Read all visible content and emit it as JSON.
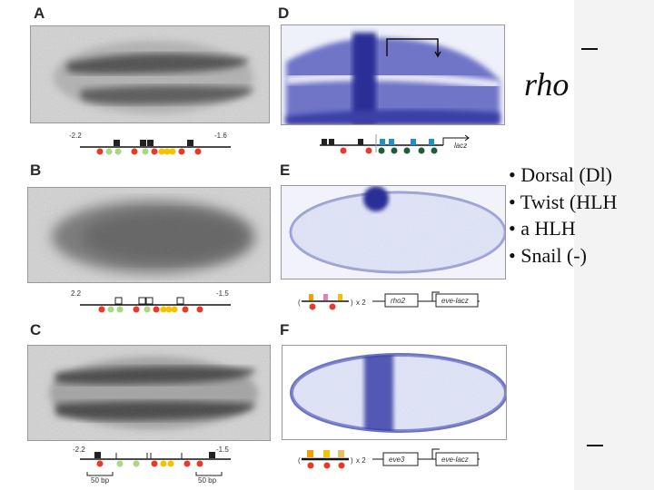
{
  "panels": {
    "A": {
      "label": "A",
      "coord_left": "-2.2",
      "coord_right": "-1.6"
    },
    "B": {
      "label": "B",
      "coord_left": "2.2",
      "coord_right": "-1.5"
    },
    "C": {
      "label": "C",
      "coord_left": "-2.2",
      "coord_right": "-1.5",
      "scale_left": "50 bp",
      "scale_right": "50 bp"
    },
    "D": {
      "label": "D",
      "reporter": "lacz"
    },
    "E": {
      "label": "E",
      "repeat": "x 2",
      "box1": "rho2",
      "box2": "eve-lacz"
    },
    "F": {
      "label": "F",
      "repeat": "x 2",
      "box1": "eve3",
      "box2": "eve-lacz"
    }
  },
  "slide": {
    "title": "rho",
    "bullets": [
      "• Dorsal (Dl)",
      "• Twist (HLH",
      "• a HLH",
      "• Snail (-)"
    ]
  },
  "colors": {
    "dorsal": "#e8392c",
    "twist": "#a7d883",
    "snail": "#222222",
    "ahlh": "#f2c400",
    "blue_site": "#1e90d0",
    "stain_blue": "#3a3fa8"
  }
}
